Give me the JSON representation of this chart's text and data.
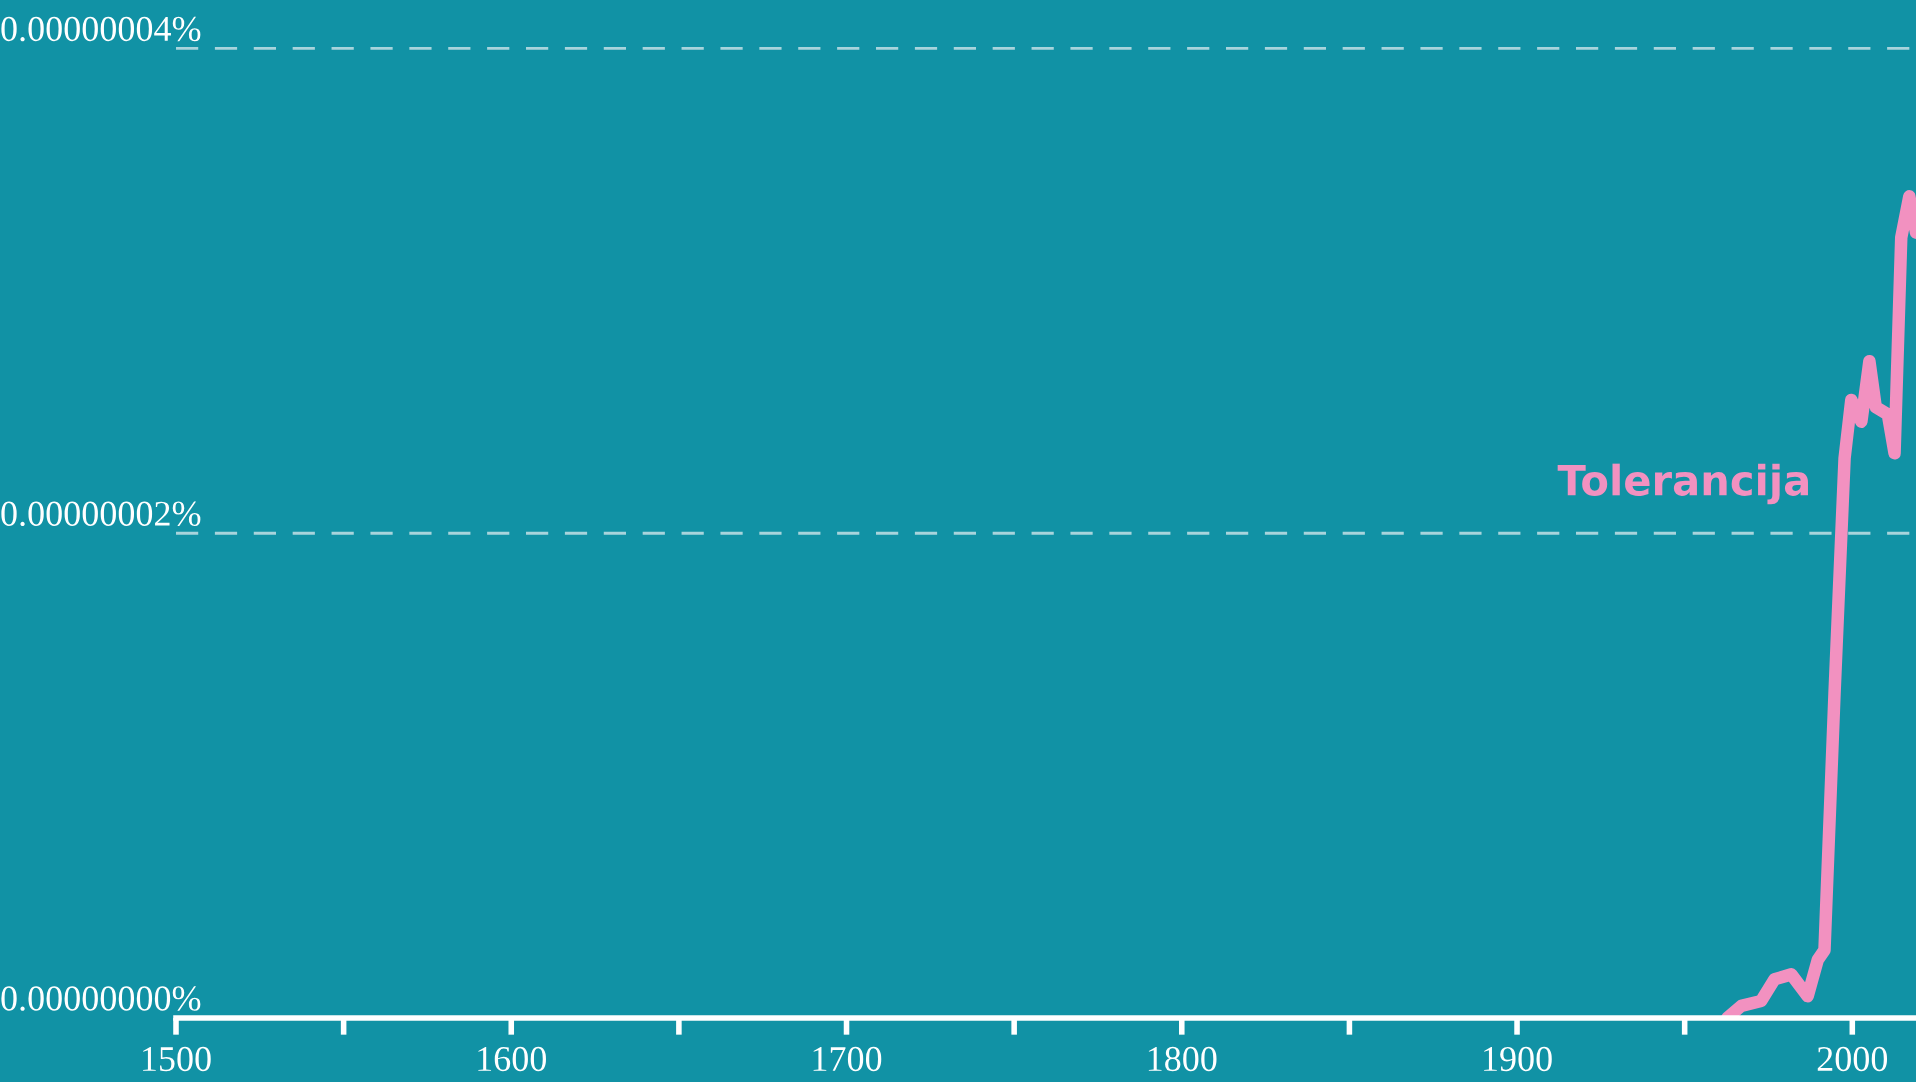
{
  "chart_data": {
    "type": "line",
    "x": [
      1962.7,
      1966.9,
      1972.8,
      1976.8,
      1981.8,
      1986.7,
      1989.7,
      1991.7,
      1994.7,
      1997.7,
      1999.7,
      2002.7,
      2005.1,
      2007.0,
      2010.6,
      2012.6,
      2014.6,
      2017.0,
      2019.0
    ],
    "series": [
      {
        "name": "Tolerancija",
        "color": "#f291c0",
        "values": [
          0,
          5e-10,
          7e-10,
          1.6e-09,
          1.8e-09,
          9e-10,
          2.4e-09,
          2.8e-09,
          1.34e-08,
          2.31e-08,
          2.55e-08,
          2.46e-08,
          2.71e-08,
          2.52e-08,
          2.49e-08,
          2.33e-08,
          3.22e-08,
          3.39e-08,
          3.24e-08
        ]
      }
    ],
    "xlim": [
      1500,
      2019
    ],
    "xticks": [
      1500,
      {
        "value": 1550,
        "label": null
      },
      1600,
      {
        "value": 1650,
        "label": null
      },
      1700,
      {
        "value": 1750,
        "label": null
      },
      1800,
      {
        "value": 1850,
        "label": null
      },
      1900,
      {
        "value": 1950,
        "label": null
      },
      2000
    ],
    "ylim": [
      0,
      4.2e-08
    ],
    "yticks": [
      {
        "value": 0,
        "label": "0.00000000%"
      },
      {
        "value": 2e-08,
        "label": "0.00000002%"
      },
      {
        "value": 4e-08,
        "label": "0.00000004%"
      }
    ],
    "grid": "y",
    "line_style": "solid",
    "marker": "none",
    "legend": false
  }
}
